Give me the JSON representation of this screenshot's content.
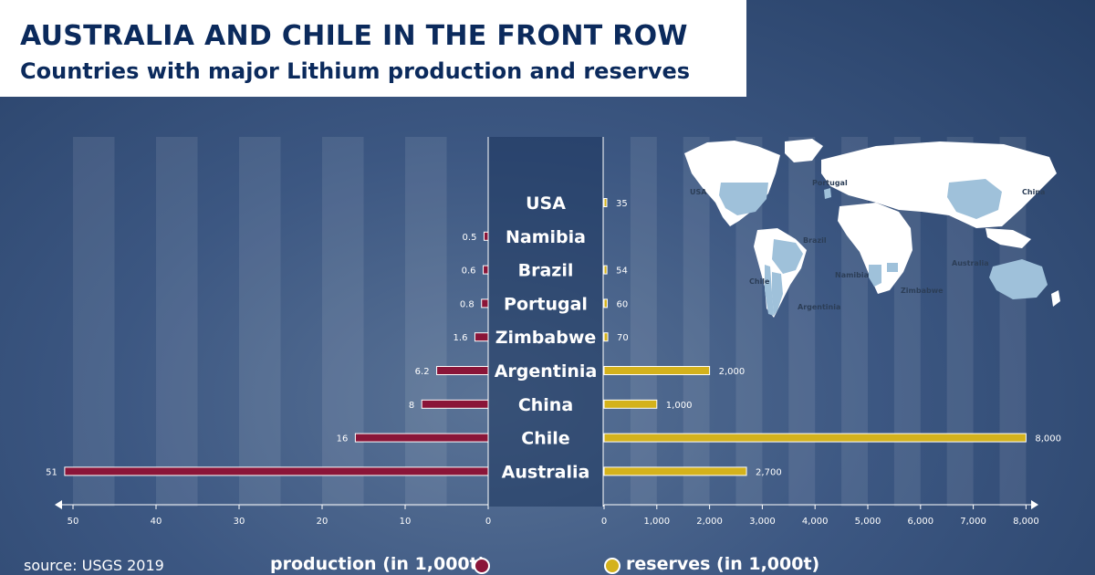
{
  "header": {
    "title": "AUSTRALIA AND CHILE IN THE FRONT ROW",
    "subtitle": "Countries with major Lithium production and reserves"
  },
  "footer": {
    "source": "source: USGS 2019",
    "production_legend": "production (in 1,000t)",
    "reserves_legend": "reserves (in 1,000t)"
  },
  "colors": {
    "production": "#8a1538",
    "reserves": "#d4b21c",
    "background": "#3c5782",
    "map_land": "#ffffff",
    "map_highlight": "#9fc1da"
  },
  "map": {
    "labels": [
      "USA",
      "Portugal",
      "China",
      "Brazil",
      "Chile",
      "Namibia",
      "Australia",
      "Zimbabwe",
      "Argentinia"
    ]
  },
  "chart_data": {
    "type": "bar",
    "orientation": "horizontal",
    "categories": [
      "USA",
      "Namibia",
      "Brazil",
      "Portugal",
      "Zimbabwe",
      "Argentinia",
      "China",
      "Chile",
      "Australia"
    ],
    "series": [
      {
        "name": "production (in 1,000t)",
        "values": [
          null,
          0.5,
          0.6,
          0.8,
          1.6,
          6.2,
          8,
          16,
          51
        ],
        "labels": [
          "",
          "0.5",
          "0.6",
          "0.8",
          "1.6",
          "6.2",
          "8",
          "16",
          "51"
        ]
      },
      {
        "name": "reserves (in 1,000t)",
        "values": [
          35,
          null,
          54,
          60,
          70,
          2000,
          1000,
          8000,
          2700
        ],
        "labels": [
          "35",
          "",
          "54",
          "60",
          "70",
          "2,000",
          "1,000",
          "8,000",
          "2,700"
        ]
      }
    ],
    "production_axis": {
      "range": [
        0,
        51
      ],
      "ticks": [
        50,
        40,
        30,
        20,
        10,
        0
      ],
      "tick_labels": [
        "50",
        "40",
        "30",
        "20",
        "10",
        "0"
      ]
    },
    "reserves_axis": {
      "range": [
        0,
        8000
      ],
      "ticks": [
        0,
        1000,
        2000,
        3000,
        4000,
        5000,
        6000,
        7000,
        8000
      ],
      "tick_labels": [
        "0",
        "1,000",
        "2,000",
        "3,000",
        "4,000",
        "5,000",
        "6,000",
        "7,000",
        "8,000"
      ]
    }
  }
}
